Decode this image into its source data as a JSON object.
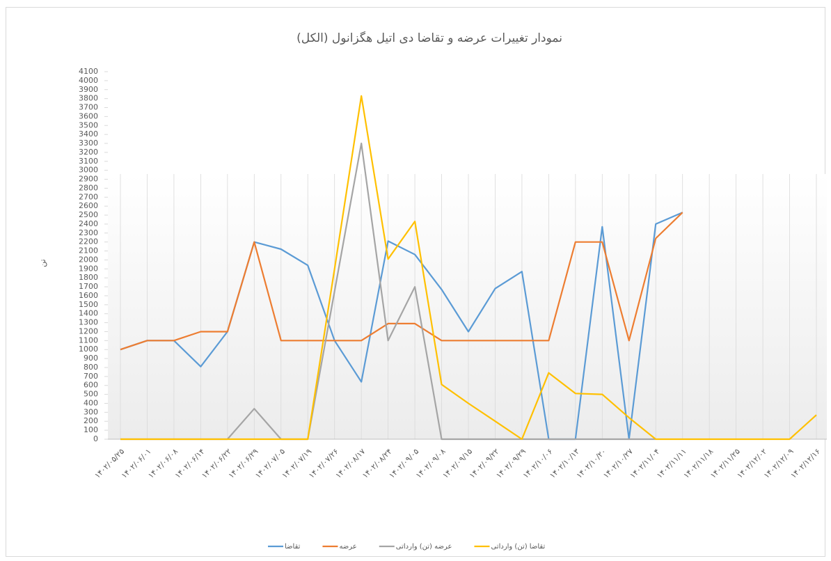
{
  "chart_data": {
    "type": "line",
    "title": "نمودار تغییرات عرضه و تقاضا دی اتیل هگزانول (الکل)",
    "y_label": "تن",
    "categories": [
      "۱۴۰۲/۰۵/۲۵",
      "۱۴۰۲/۰۶/۰۱",
      "۱۴۰۲/۰۶/۰۸",
      "۱۴۰۲/۰۶/۱۴",
      "۱۴۰۲/۰۶/۲۲",
      "۱۴۰۲/۰۶/۲۹",
      "۱۴۰۲/۰۷/۰۵",
      "۱۴۰۲/۰۷/۱۹",
      "۱۴۰۲/۰۷/۲۶",
      "۱۴۰۲/۰۸/۱۷",
      "۱۴۰۲/۰۸/۲۴",
      "۱۴۰۲/۰۹/۰۵",
      "۱۴۰۲/۰۹/۰۸",
      "۱۴۰۲/۰۹/۱۵",
      "۱۴۰۲/۰۹/۲۲",
      "۱۴۰۲/۰۹/۲۹",
      "۱۴۰۲/۱۰/۰۶",
      "۱۴۰۲/۱۰/۱۳",
      "۱۴۰۲/۱۰/۲۰",
      "۱۴۰۲/۱۰/۲۷",
      "۱۴۰۲/۱۱/۰۴",
      "۱۴۰۲/۱۱/۱۱",
      "۱۴۰۲/۱۱/۱۸",
      "۱۴۰۲/۱۱/۲۵",
      "۱۴۰۲/۱۲/۰۲",
      "۱۴۰۲/۱۲/۰۹",
      "۱۴۰۲/۱۲/۱۶"
    ],
    "series": [
      {
        "name": "تقاضا",
        "color": "#5b9bd5",
        "values": [
          1000,
          1100,
          1100,
          810,
          1200,
          2200,
          2120,
          1940,
          1100,
          640,
          2210,
          2060,
          1670,
          1200,
          1680,
          1870,
          0,
          0,
          2370,
          0,
          2400,
          2530,
          null,
          null,
          null,
          null,
          null
        ]
      },
      {
        "name": "عرضه",
        "color": "#ed7d31",
        "values": [
          1000,
          1100,
          1100,
          1200,
          1200,
          2200,
          1100,
          1100,
          1100,
          1100,
          1290,
          1290,
          1100,
          1100,
          1100,
          1100,
          1100,
          2200,
          2200,
          1100,
          2240,
          2530,
          null,
          null,
          null,
          null,
          null
        ]
      },
      {
        "name": "عرضه (تن) وارداتی",
        "color": "#a5a5a5",
        "values": [
          0,
          0,
          0,
          0,
          0,
          340,
          0,
          0,
          1650,
          3300,
          1100,
          1700,
          0,
          0,
          0,
          0,
          0,
          0,
          0,
          0,
          0,
          null,
          null,
          null,
          null,
          null,
          null
        ]
      },
      {
        "name": "تقاضا (تن) وارداتی",
        "color": "#ffc000",
        "values": [
          0,
          0,
          0,
          0,
          0,
          0,
          0,
          0,
          1900,
          3830,
          2010,
          2430,
          610,
          400,
          200,
          0,
          740,
          510,
          500,
          240,
          0,
          0,
          0,
          0,
          0,
          0,
          270
        ]
      }
    ],
    "ylim": [
      0,
      4100
    ],
    "yticks": [
      0,
      100,
      200,
      300,
      400,
      500,
      600,
      700,
      800,
      900,
      1000,
      1100,
      1200,
      1300,
      1400,
      1500,
      1600,
      1700,
      1800,
      1900,
      2000,
      2100,
      2200,
      2300,
      2400,
      2500,
      2600,
      2700,
      2800,
      2900,
      3000,
      3100,
      3200,
      3300,
      3400,
      3500,
      3600,
      3700,
      3800,
      3900,
      4000,
      4100
    ],
    "grid": true,
    "legend": "bottom"
  }
}
